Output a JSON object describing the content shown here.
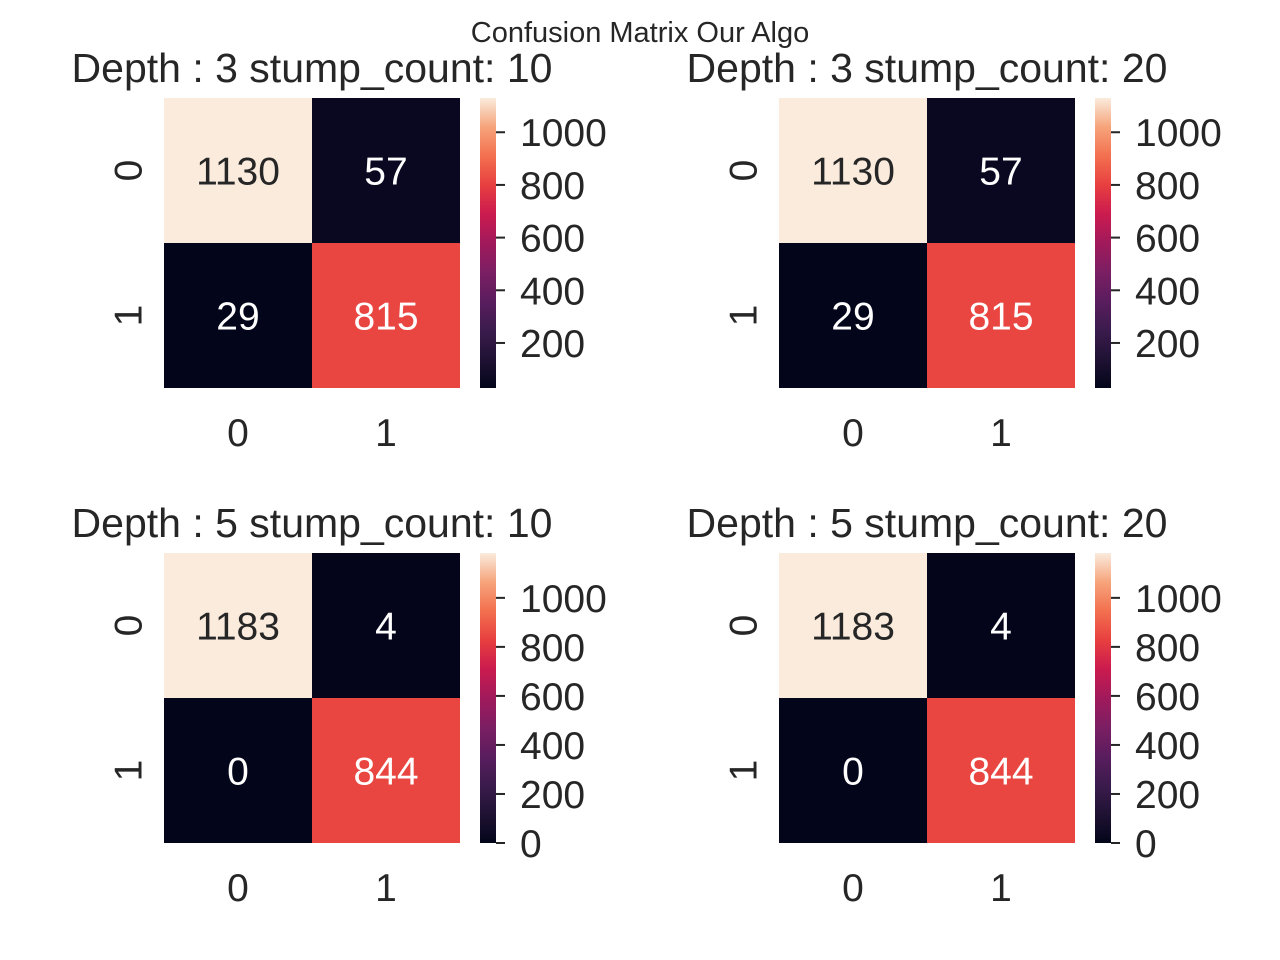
{
  "suptitle": "Confusion Matrix Our Algo",
  "colors": {
    "text": "#262626",
    "tick_line": "#262626"
  },
  "chart_data": [
    {
      "type": "heatmap",
      "title": "Depth : 3 stump_count: 10",
      "x_ticks": [
        "0",
        "1"
      ],
      "y_ticks": [
        "0",
        "1"
      ],
      "matrix": [
        [
          1130,
          57
        ],
        [
          29,
          815
        ]
      ],
      "vmin": 29,
      "vmax": 1130,
      "colorbar_ticks": [
        200,
        400,
        600,
        800,
        1000
      ],
      "colormap": "rocket"
    },
    {
      "type": "heatmap",
      "title": "Depth : 3 stump_count: 20",
      "x_ticks": [
        "0",
        "1"
      ],
      "y_ticks": [
        "0",
        "1"
      ],
      "matrix": [
        [
          1130,
          57
        ],
        [
          29,
          815
        ]
      ],
      "vmin": 29,
      "vmax": 1130,
      "colorbar_ticks": [
        200,
        400,
        600,
        800,
        1000
      ],
      "colormap": "rocket"
    },
    {
      "type": "heatmap",
      "title": "Depth : 5 stump_count: 10",
      "x_ticks": [
        "0",
        "1"
      ],
      "y_ticks": [
        "0",
        "1"
      ],
      "matrix": [
        [
          1183,
          4
        ],
        [
          0,
          844
        ]
      ],
      "vmin": 0,
      "vmax": 1183,
      "colorbar_ticks": [
        0,
        200,
        400,
        600,
        800,
        1000
      ],
      "colormap": "rocket"
    },
    {
      "type": "heatmap",
      "title": "Depth : 5 stump_count: 20",
      "x_ticks": [
        "0",
        "1"
      ],
      "y_ticks": [
        "0",
        "1"
      ],
      "matrix": [
        [
          1183,
          4
        ],
        [
          0,
          844
        ]
      ],
      "vmin": 0,
      "vmax": 1183,
      "colorbar_ticks": [
        0,
        200,
        400,
        600,
        800,
        1000
      ],
      "colormap": "rocket"
    }
  ]
}
